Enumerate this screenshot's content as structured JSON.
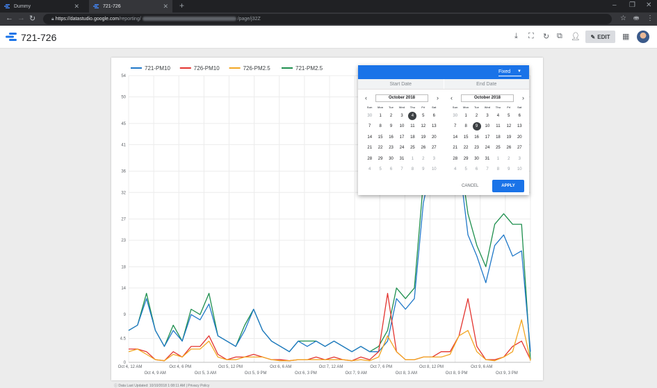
{
  "browser": {
    "tabs": [
      {
        "title": "Dummy",
        "active": false
      },
      {
        "title": "721-726",
        "active": true
      }
    ],
    "url_host": "https://datastudio.google.com",
    "url_path": "/reporting/",
    "url_page": "/page/j32Z"
  },
  "header": {
    "title": "721-726",
    "edit_label": "EDIT"
  },
  "date_picker": {
    "mode": "Fixed",
    "start_label": "Start Date",
    "end_label": "End Date",
    "cancel_label": "CANCEL",
    "apply_label": "APPLY",
    "dow": [
      "Sun",
      "Mon",
      "Tue",
      "Wed",
      "Thu",
      "Fri",
      "Sat"
    ],
    "start": {
      "month": "October 2018",
      "selected": "4",
      "days": [
        [
          "30",
          1
        ],
        [
          "1",
          0
        ],
        [
          "2",
          0
        ],
        [
          "3",
          0
        ],
        [
          "4",
          0
        ],
        [
          "5",
          0
        ],
        [
          "6",
          0
        ],
        [
          "7",
          0
        ],
        [
          "8",
          0
        ],
        [
          "9",
          0
        ],
        [
          "10",
          0
        ],
        [
          "11",
          0
        ],
        [
          "12",
          0
        ],
        [
          "13",
          0
        ],
        [
          "14",
          0
        ],
        [
          "15",
          0
        ],
        [
          "16",
          0
        ],
        [
          "17",
          0
        ],
        [
          "18",
          0
        ],
        [
          "19",
          0
        ],
        [
          "20",
          0
        ],
        [
          "21",
          0
        ],
        [
          "22",
          0
        ],
        [
          "23",
          0
        ],
        [
          "24",
          0
        ],
        [
          "25",
          0
        ],
        [
          "26",
          0
        ],
        [
          "27",
          0
        ],
        [
          "28",
          0
        ],
        [
          "29",
          0
        ],
        [
          "30",
          0
        ],
        [
          "31",
          0
        ],
        [
          "1",
          1
        ],
        [
          "2",
          1
        ],
        [
          "3",
          1
        ],
        [
          "4",
          1
        ],
        [
          "5",
          1
        ],
        [
          "6",
          1
        ],
        [
          "7",
          1
        ],
        [
          "8",
          1
        ],
        [
          "9",
          1
        ],
        [
          "10",
          1
        ]
      ]
    },
    "end": {
      "month": "October 2018",
      "selected": "9",
      "days": [
        [
          "30",
          1
        ],
        [
          "1",
          0
        ],
        [
          "2",
          0
        ],
        [
          "3",
          0
        ],
        [
          "4",
          0
        ],
        [
          "5",
          0
        ],
        [
          "6",
          0
        ],
        [
          "7",
          0
        ],
        [
          "8",
          0
        ],
        [
          "9",
          0
        ],
        [
          "10",
          0
        ],
        [
          "11",
          0
        ],
        [
          "12",
          0
        ],
        [
          "13",
          0
        ],
        [
          "14",
          0
        ],
        [
          "15",
          0
        ],
        [
          "16",
          0
        ],
        [
          "17",
          0
        ],
        [
          "18",
          0
        ],
        [
          "19",
          0
        ],
        [
          "20",
          0
        ],
        [
          "21",
          0
        ],
        [
          "22",
          0
        ],
        [
          "23",
          0
        ],
        [
          "24",
          0
        ],
        [
          "25",
          0
        ],
        [
          "26",
          0
        ],
        [
          "27",
          0
        ],
        [
          "28",
          0
        ],
        [
          "29",
          0
        ],
        [
          "30",
          0
        ],
        [
          "31",
          0
        ],
        [
          "1",
          1
        ],
        [
          "2",
          1
        ],
        [
          "3",
          1
        ],
        [
          "4",
          1
        ],
        [
          "5",
          1
        ],
        [
          "6",
          1
        ],
        [
          "7",
          1
        ],
        [
          "8",
          1
        ],
        [
          "9",
          1
        ],
        [
          "10",
          1
        ]
      ]
    }
  },
  "footer": {
    "text": "Data Last Updated: 10/10/2018 1:08:11 AM | Privacy Policy"
  },
  "colors": {
    "accent": "#1a73e8",
    "series": [
      "#1f78c8",
      "#e3342f",
      "#f2a623",
      "#1e8f4e"
    ]
  },
  "chart_data": {
    "type": "line",
    "title": "",
    "xlabel": "",
    "ylabel": "",
    "ylim": [
      0,
      54
    ],
    "yticks": [
      0,
      4.5,
      9,
      14,
      18,
      23,
      27,
      32,
      36,
      41,
      45,
      50,
      54
    ],
    "xticks_top": [
      "Oct 4, 12 AM",
      "Oct 4, 6 PM",
      "Oct 5, 12 PM",
      "Oct 6, 6 AM",
      "Oct 7, 12 AM",
      "Oct 7, 6 PM",
      "Oct 8, 12 PM",
      "Oct 9, 6 AM"
    ],
    "xticks_bottom": [
      "Oct 4, 9 AM",
      "Oct 5, 3 AM",
      "Oct 5, 9 PM",
      "Oct 6, 3 PM",
      "Oct 7, 9 AM",
      "Oct 8, 3 AM",
      "Oct 8, 9 PM",
      "Oct 9, 3 PM"
    ],
    "legend_position": "top-left",
    "grid": true,
    "x_hours": [
      0,
      3,
      6,
      9,
      12,
      15,
      18,
      21,
      24,
      27,
      30,
      33,
      36,
      39,
      42,
      45,
      48,
      51,
      54,
      57,
      60,
      63,
      66,
      69,
      72,
      75,
      78,
      81,
      84,
      87,
      90,
      93,
      96,
      99,
      102,
      105,
      108,
      111,
      114,
      117,
      120,
      123,
      126,
      129,
      132,
      135
    ],
    "series": [
      {
        "name": "721-PM10",
        "values": [
          6,
          7,
          12,
          6,
          3,
          6,
          4,
          9,
          8,
          11,
          5,
          4,
          3,
          6,
          10,
          6,
          4,
          3,
          2,
          4,
          3,
          4,
          3,
          4,
          3,
          2,
          3,
          2,
          2,
          4,
          12,
          10,
          12,
          30,
          38,
          37,
          35,
          38,
          24,
          20,
          15,
          22,
          24,
          20,
          21,
          2
        ]
      },
      {
        "name": "726-PM10",
        "values": [
          2.5,
          2.5,
          2,
          0.5,
          0.3,
          2,
          1,
          3,
          3,
          5,
          1.5,
          0.5,
          1,
          1,
          1.5,
          1,
          0.5,
          0.5,
          0.3,
          0.5,
          0.5,
          1,
          0.5,
          1,
          0.5,
          0.3,
          1,
          0.5,
          2,
          13,
          2,
          0.5,
          0.5,
          1,
          1,
          2,
          2,
          5,
          12,
          3,
          0.5,
          0.5,
          1,
          3,
          4,
          0.5
        ]
      },
      {
        "name": "726-PM2.5",
        "values": [
          2,
          2.5,
          1.5,
          0.5,
          0.3,
          1.5,
          1,
          2.5,
          2.5,
          4,
          1,
          0.5,
          0.5,
          1,
          1,
          1,
          0.5,
          0.3,
          0.3,
          0.5,
          0.5,
          0.5,
          0.5,
          0.5,
          0.5,
          0.3,
          0.5,
          0.3,
          1,
          5,
          2,
          0.5,
          0.5,
          1,
          1,
          1,
          1.5,
          5,
          6,
          2,
          0.5,
          0.3,
          1,
          2,
          8,
          0.3
        ]
      },
      {
        "name": "721-PM2.5",
        "values": [
          6,
          7,
          13,
          6,
          3,
          7,
          4,
          10,
          9,
          13,
          5,
          4,
          3,
          7,
          10,
          6,
          4,
          3,
          2,
          4,
          4,
          4,
          3,
          4,
          3,
          2,
          3,
          2,
          3,
          6,
          14,
          12,
          14,
          34,
          44,
          42,
          38,
          40,
          28,
          22,
          18,
          26,
          28,
          26,
          26,
          0.5
        ]
      }
    ]
  }
}
